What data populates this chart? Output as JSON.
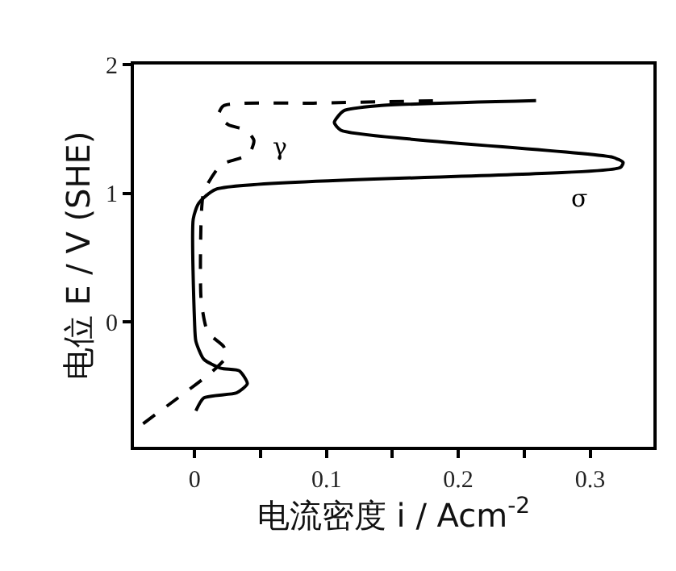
{
  "chart_data": {
    "type": "line",
    "xlabel": "电流密度 i / Acm$^{-2}$",
    "ylabel": "电位 E / V (SHE)",
    "xlim": [
      -0.046,
      0.348
    ],
    "ylim": [
      -0.97,
      2.0
    ],
    "xticks": [
      0,
      {
        "value": 0.05,
        "label": null
      },
      0.1,
      {
        "value": 0.15,
        "label": null
      },
      0.2,
      {
        "value": 0.25,
        "label": null
      },
      0.3
    ],
    "yticks": [
      0,
      1,
      2
    ],
    "series": [
      {
        "color": "#000000",
        "line_style": "solid",
        "x": [
          0.001,
          0.007,
          0.032,
          0.04,
          0.034,
          0.02,
          0.007,
          0.001,
          0.0,
          -0.001,
          0.003,
          0.016,
          0.323,
          0.325,
          0.317,
          0.111,
          0.106,
          0.113,
          0.14,
          0.259
        ],
        "values": [
          -0.69,
          -0.59,
          -0.55,
          -0.48,
          -0.38,
          -0.36,
          -0.29,
          -0.15,
          0.0,
          0.8,
          0.92,
          1.03,
          1.2,
          1.24,
          1.28,
          1.49,
          1.55,
          1.64,
          1.68,
          1.72
        ]
      },
      {
        "color": "#000000",
        "line_style": "dashed",
        "x": [
          -0.039,
          0.014,
          0.024,
          0.022,
          0.01,
          0.005,
          0.005,
          0.007,
          0.02,
          0.041,
          0.045,
          0.039,
          0.026,
          0.018,
          0.022,
          0.09,
          0.19
        ],
        "values": [
          -0.79,
          -0.38,
          -0.27,
          -0.19,
          -0.08,
          0.17,
          0.8,
          1.01,
          1.22,
          1.3,
          1.41,
          1.49,
          1.53,
          1.6,
          1.68,
          1.7,
          1.72
        ]
      }
    ],
    "annotations": [
      "γ",
      "σ"
    ]
  }
}
